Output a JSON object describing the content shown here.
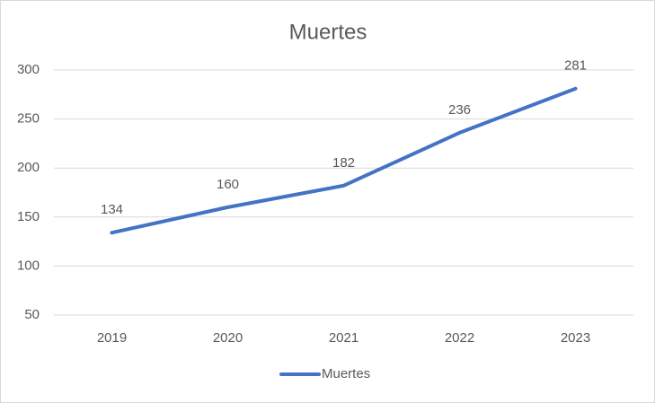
{
  "chart_data": {
    "type": "line",
    "title": "Muertes",
    "categories": [
      "2019",
      "2020",
      "2021",
      "2022",
      "2023"
    ],
    "series": [
      {
        "name": "Muertes",
        "color": "#4472c4",
        "values": [
          134,
          160,
          182,
          236,
          281
        ]
      }
    ],
    "ylim": [
      50,
      300
    ],
    "yticks": [
      50,
      100,
      150,
      200,
      250,
      300
    ],
    "grid": true,
    "legend": "bottom",
    "data_labels": true
  }
}
